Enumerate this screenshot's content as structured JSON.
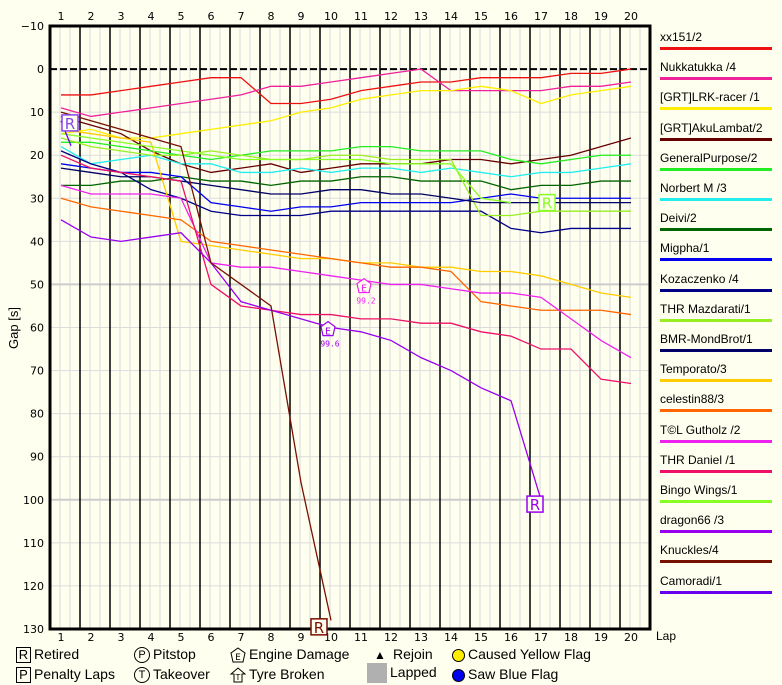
{
  "chart_data": {
    "type": "line",
    "title": "",
    "xlabel": "Lap",
    "ylabel": "Gap [s]",
    "x": [
      1,
      2,
      3,
      4,
      5,
      6,
      7,
      8,
      9,
      10,
      11,
      12,
      13,
      14,
      15,
      16,
      17,
      18,
      19,
      20
    ],
    "ylim": [
      -10,
      130
    ],
    "y_ticks": [
      -10,
      0,
      10,
      20,
      30,
      40,
      50,
      60,
      70,
      80,
      90,
      100,
      110,
      120,
      130
    ],
    "y_inverted": true,
    "grid": true,
    "legend_position": "right",
    "series": [
      {
        "name": "xx151/2",
        "color": "#ee1111",
        "values": [
          6,
          6,
          5,
          4,
          3,
          2,
          2,
          8,
          8,
          7,
          5,
          4,
          3,
          3,
          2,
          2,
          2,
          1,
          1,
          0
        ]
      },
      {
        "name": "Nukkatukka /4",
        "color": "#ee2299",
        "values": [
          9,
          11,
          10,
          9,
          8,
          7,
          6,
          4,
          4,
          3,
          2,
          1,
          0,
          5,
          5,
          5,
          5,
          4,
          4,
          3
        ]
      },
      {
        "name": "[GRT]LRK-racer /1",
        "color": "#ffee00",
        "values": [
          15,
          14,
          16,
          16,
          15,
          14,
          13,
          12,
          10,
          9,
          7,
          6,
          5,
          5,
          4,
          5,
          8,
          6,
          5,
          4
        ]
      },
      {
        "name": "[GRT]AkuLambat/2",
        "color": "#660000",
        "values": [
          11,
          13,
          15,
          19,
          22,
          24,
          23,
          22,
          24,
          23,
          22,
          22,
          22,
          21,
          21,
          22,
          21,
          20,
          18,
          16
        ]
      },
      {
        "name": "GeneralPurpose/2",
        "color": "#22ee22",
        "values": [
          17,
          17,
          18,
          19,
          20,
          21,
          20,
          19,
          19,
          19,
          18,
          18,
          19,
          19,
          19,
          21,
          22,
          21,
          20,
          20
        ]
      },
      {
        "name": "Norbert M /3",
        "color": "#22eeee",
        "values": [
          18,
          22,
          21,
          20,
          22,
          22,
          24,
          24,
          23,
          24,
          23,
          23,
          24,
          23,
          24,
          25,
          24,
          24,
          23,
          22
        ]
      },
      {
        "name": "Deivi/2",
        "color": "#006600",
        "values": [
          27,
          27,
          26,
          26,
          25,
          26,
          26,
          27,
          26,
          26,
          25,
          25,
          26,
          26,
          26,
          28,
          27,
          27,
          26,
          26
        ]
      },
      {
        "name": "Migpha/1",
        "color": "#0000ee",
        "values": [
          22,
          23,
          24,
          24,
          25,
          31,
          32,
          33,
          32,
          32,
          31,
          31,
          31,
          31,
          30,
          29,
          30,
          30,
          30,
          30
        ]
      },
      {
        "name": "Kozaczenko /4",
        "color": "#000088",
        "values": [
          19,
          22,
          24,
          28,
          30,
          33,
          34,
          34,
          34,
          33,
          33,
          33,
          33,
          33,
          33,
          37,
          38,
          37,
          37,
          37
        ]
      },
      {
        "name": "THR Mazdarati/1",
        "color": "#99ee22",
        "values": [
          16,
          18,
          19,
          20,
          20,
          19,
          20,
          21,
          21,
          20,
          20,
          21,
          21,
          21,
          34,
          34,
          33,
          33,
          33,
          33
        ]
      },
      {
        "name": "BMR-MondBrot/1",
        "color": "#000066",
        "values": [
          23,
          24,
          25,
          25,
          26,
          27,
          28,
          29,
          29,
          28,
          28,
          29,
          29,
          30,
          31,
          31,
          31,
          31,
          31,
          31
        ]
      },
      {
        "name": "Temporato/3",
        "color": "#ffcc00",
        "values": [
          14,
          15,
          16,
          17,
          40,
          41,
          42,
          43,
          44,
          44,
          45,
          45,
          46,
          46,
          47,
          47,
          48,
          50,
          52,
          53
        ]
      },
      {
        "name": "celestin88/3",
        "color": "#ff6600",
        "values": [
          30,
          32,
          33,
          34,
          35,
          40,
          41,
          42,
          43,
          44,
          45,
          46,
          46,
          47,
          54,
          55,
          56,
          56,
          56,
          57
        ]
      },
      {
        "name": "T©L Gutholz /2",
        "color": "#ee22ee",
        "values": [
          27,
          29,
          29,
          29,
          30,
          45,
          46,
          46,
          47,
          48,
          49,
          50,
          50,
          51,
          52,
          52,
          53,
          58,
          63,
          67
        ]
      },
      {
        "name": "THR Daniel /1",
        "color": "#ee1166",
        "values": [
          20,
          23,
          24,
          25,
          26,
          50,
          55,
          56,
          57,
          57,
          58,
          58,
          59,
          59,
          61,
          62,
          65,
          65,
          72,
          73
        ]
      },
      {
        "name": "Bingo Wings/1",
        "color": "#88ff22",
        "values": [
          15,
          16,
          17,
          18,
          19,
          20,
          21,
          21,
          21,
          21,
          21,
          22,
          22,
          22,
          30,
          31,
          null,
          null,
          null,
          null
        ]
      },
      {
        "name": "dragon66 /3",
        "color": "#9900ee",
        "values": [
          35,
          39,
          40,
          39,
          38,
          45,
          54,
          56,
          58,
          60,
          61,
          63,
          67,
          70,
          74,
          77,
          100,
          null,
          null,
          null
        ]
      },
      {
        "name": "Knuckles/4",
        "color": "#771100",
        "values": [
          10,
          12,
          14,
          16,
          18,
          45,
          50,
          55,
          96,
          128,
          null,
          null,
          null,
          null,
          null,
          null,
          null,
          null,
          null,
          null
        ]
      },
      {
        "name": "Camoradi/1",
        "color": "#6600ee",
        "values": [
          12,
          null,
          null,
          null,
          null,
          null,
          null,
          null,
          null,
          null,
          null,
          null,
          null,
          null,
          null,
          null,
          null,
          null,
          null,
          null
        ]
      }
    ],
    "annotations": [
      {
        "type": "retired",
        "label": "R",
        "lap": 1.3,
        "gap": 12.5,
        "color": "#8844ee"
      },
      {
        "type": "retired",
        "label": "R",
        "lap": 9.6,
        "gap": 129.5,
        "color": "#771100"
      },
      {
        "type": "retired",
        "label": "R",
        "lap": 16.8,
        "gap": 101,
        "color": "#9900ee"
      },
      {
        "type": "retired",
        "label": "R",
        "lap": 17.2,
        "gap": 31,
        "color": "#88ff22"
      },
      {
        "type": "engine-damage",
        "label": "E",
        "lap": 11.1,
        "gap": 50.5,
        "value_text": "99.2",
        "color": "#ee22ee"
      },
      {
        "type": "engine-damage",
        "label": "E",
        "lap": 9.9,
        "gap": 60.5,
        "value_text": "99.6",
        "color": "#9900ee"
      }
    ]
  },
  "axes": {
    "x_label": "Lap",
    "y_label": "Gap [s]"
  },
  "key": {
    "retired": {
      "symbol": "R",
      "label": "Retired"
    },
    "penalty": {
      "symbol": "P",
      "label": "Penalty Laps"
    },
    "pitstop": {
      "symbol": "P",
      "label": "Pitstop"
    },
    "takeover": {
      "symbol": "T",
      "label": "Takeover"
    },
    "engine": {
      "symbol": "E",
      "label": "Engine Damage"
    },
    "tyre": {
      "symbol": "T",
      "label": "Tyre Broken"
    },
    "rejoin": {
      "symbol": "▲",
      "label": "Rejoin"
    },
    "lapped": {
      "label": "Lapped"
    },
    "yellow": {
      "label": "Caused Yellow Flag",
      "color": "#ffee00"
    },
    "blue": {
      "label": "Saw Blue Flag",
      "color": "#0000ee"
    }
  }
}
